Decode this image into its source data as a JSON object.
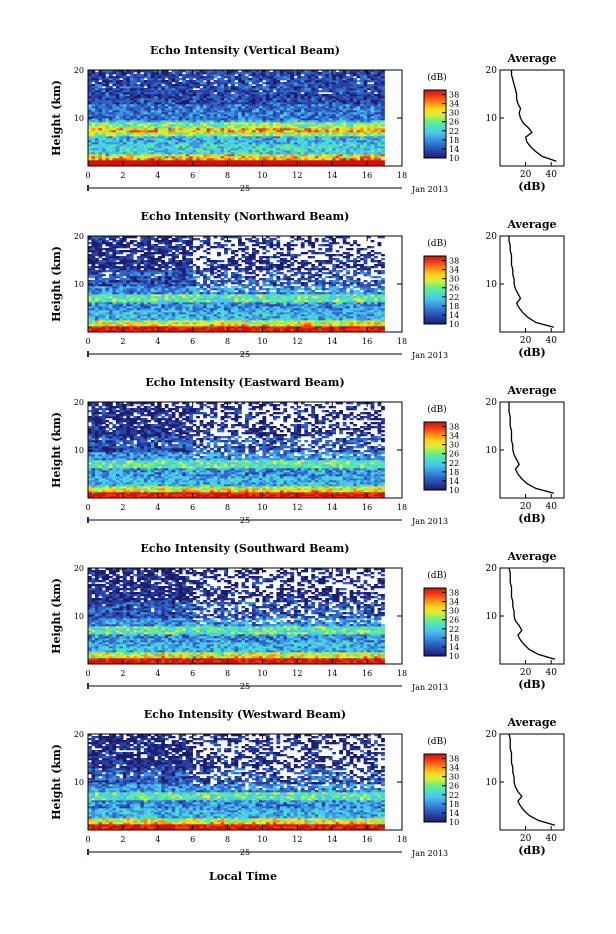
{
  "panels": [
    {
      "title": "Echo Intensity (Vertical Beam)",
      "avg_profile": [
        [
          1,
          44
        ],
        [
          2,
          33
        ],
        [
          3,
          28
        ],
        [
          4,
          24
        ],
        [
          5,
          21
        ],
        [
          6,
          20
        ],
        [
          7,
          25
        ],
        [
          8,
          22
        ],
        [
          9,
          18
        ],
        [
          10,
          16
        ],
        [
          11,
          15
        ],
        [
          12,
          16
        ],
        [
          13,
          14
        ],
        [
          14,
          13
        ],
        [
          15,
          13
        ],
        [
          16,
          12
        ],
        [
          17,
          11
        ],
        [
          18,
          10
        ],
        [
          19,
          9
        ],
        [
          20,
          9
        ]
      ]
    },
    {
      "title": "Echo Intensity (Northward Beam)",
      "avg_profile": [
        [
          1,
          42
        ],
        [
          2,
          28
        ],
        [
          3,
          22
        ],
        [
          4,
          18
        ],
        [
          5,
          15
        ],
        [
          6,
          13
        ],
        [
          7,
          16
        ],
        [
          8,
          14
        ],
        [
          9,
          12
        ],
        [
          10,
          11
        ],
        [
          11,
          11
        ],
        [
          12,
          10
        ],
        [
          13,
          10
        ],
        [
          14,
          9
        ],
        [
          15,
          9
        ],
        [
          16,
          9
        ],
        [
          17,
          8
        ],
        [
          18,
          8
        ],
        [
          19,
          7
        ],
        [
          20,
          7
        ]
      ]
    },
    {
      "title": "Echo Intensity (Eastward Beam)",
      "avg_profile": [
        [
          1,
          42
        ],
        [
          2,
          28
        ],
        [
          3,
          21
        ],
        [
          4,
          17
        ],
        [
          5,
          14
        ],
        [
          6,
          12
        ],
        [
          7,
          15
        ],
        [
          8,
          13
        ],
        [
          9,
          11
        ],
        [
          10,
          10
        ],
        [
          11,
          10
        ],
        [
          12,
          9
        ],
        [
          13,
          9
        ],
        [
          14,
          9
        ],
        [
          15,
          8
        ],
        [
          16,
          8
        ],
        [
          17,
          8
        ],
        [
          18,
          7
        ],
        [
          19,
          7
        ],
        [
          20,
          7
        ]
      ]
    },
    {
      "title": "Echo Intensity (Southward Beam)",
      "avg_profile": [
        [
          1,
          43
        ],
        [
          2,
          30
        ],
        [
          3,
          23
        ],
        [
          4,
          19
        ],
        [
          5,
          16
        ],
        [
          6,
          14
        ],
        [
          7,
          17
        ],
        [
          8,
          15
        ],
        [
          9,
          12
        ],
        [
          10,
          11
        ],
        [
          11,
          11
        ],
        [
          12,
          10
        ],
        [
          13,
          10
        ],
        [
          14,
          9
        ],
        [
          15,
          9
        ],
        [
          16,
          9
        ],
        [
          17,
          8
        ],
        [
          18,
          8
        ],
        [
          19,
          8
        ],
        [
          20,
          7
        ]
      ]
    },
    {
      "title": "Echo Intensity (Westward Beam)",
      "avg_profile": [
        [
          1,
          43
        ],
        [
          2,
          30
        ],
        [
          3,
          23
        ],
        [
          4,
          19
        ],
        [
          5,
          16
        ],
        [
          6,
          14
        ],
        [
          7,
          17
        ],
        [
          8,
          14
        ],
        [
          9,
          12
        ],
        [
          10,
          11
        ],
        [
          11,
          11
        ],
        [
          12,
          10
        ],
        [
          13,
          10
        ],
        [
          14,
          9
        ],
        [
          15,
          9
        ],
        [
          16,
          9
        ],
        [
          17,
          8
        ],
        [
          18,
          8
        ],
        [
          19,
          8
        ],
        [
          20,
          7
        ]
      ]
    }
  ],
  "labels": {
    "ylabel": "Height (km)",
    "xlabel": "Local Time",
    "date_day": "25",
    "date_month": "Jan 2013",
    "colorbar_unit": "(dB)",
    "avg_title": "Average",
    "avg_xlabel": "(dB)"
  },
  "chart_data": {
    "type": "heatmap",
    "title": "Echo Intensity",
    "panels": [
      "Vertical Beam",
      "Northward Beam",
      "Eastward Beam",
      "Southward Beam",
      "Westward Beam"
    ],
    "xlabel": "Local Time",
    "ylabel": "Height (km)",
    "x_ticks": [
      0,
      2,
      4,
      6,
      8,
      10,
      12,
      14,
      16,
      18
    ],
    "xlim": [
      0,
      18
    ],
    "data_time_range": [
      0,
      17
    ],
    "y_ticks": [
      10,
      20
    ],
    "ylim": [
      0,
      20
    ],
    "colorbar": {
      "unit": "(dB)",
      "ticks": [
        10,
        14,
        18,
        22,
        26,
        30,
        34,
        38
      ],
      "range": [
        10,
        40
      ]
    },
    "average_panel": {
      "title": "Average",
      "xlabel": "(dB)",
      "x_ticks": [
        20,
        40
      ],
      "xlim": [
        0,
        50
      ],
      "ylim": [
        0,
        20
      ]
    },
    "colors": {
      "scale": [
        "#1c1c6b",
        "#283ea0",
        "#2f66c8",
        "#3b95e0",
        "#4cc3f0",
        "#4de0c8",
        "#6ff07a",
        "#d8f03a",
        "#ffd21a",
        "#ff8a12",
        "#f03c14",
        "#d01010"
      ]
    }
  }
}
